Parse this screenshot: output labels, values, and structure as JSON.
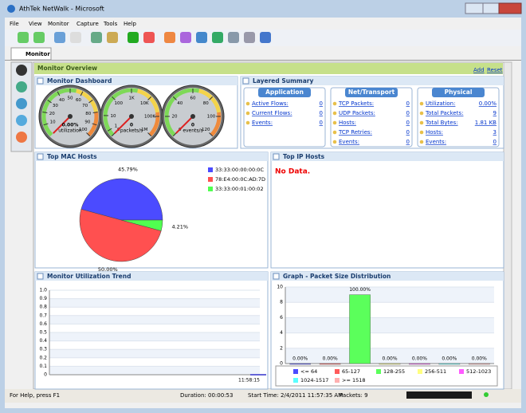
{
  "window": {
    "title": "AthTek NetWalk - Microsoft",
    "menu": [
      "File",
      "View",
      "Monitor",
      "Capture",
      "Tools",
      "Help"
    ],
    "tab": "Monitor"
  },
  "overview": {
    "title": "Monitor Overview",
    "links": [
      "Add",
      "Reset"
    ]
  },
  "dashboard": {
    "title": "Monitor Dashboard",
    "gauges": [
      {
        "label": "utilization",
        "value": 0,
        "value_label": "0.00%",
        "range": [
          0,
          100
        ],
        "ticks": [
          10,
          20,
          30,
          40,
          50,
          60,
          70,
          80,
          90,
          100
        ]
      },
      {
        "label": "packets/s",
        "value": 0,
        "scale": "log",
        "range": [
          0,
          1000000
        ],
        "ticks": [
          0,
          1,
          10,
          100,
          {
            "value": 1000,
            "label": "1K"
          },
          {
            "value": 10000,
            "label": "10K"
          },
          {
            "value": 100000,
            "label": "100K"
          },
          {
            "value": 1000000,
            "label": "1M"
          }
        ]
      },
      {
        "label": "events/s",
        "value": 0,
        "range": [
          0,
          120
        ],
        "ticks": [
          0,
          20,
          40,
          60,
          80,
          100,
          120
        ]
      }
    ]
  },
  "summary": {
    "title": "Layered Summary",
    "groups": [
      {
        "title": "Application",
        "rows": [
          {
            "label": "Active Flows:",
            "value": 0
          },
          {
            "label": "Current Flows:",
            "value": 0
          },
          {
            "label": "Events:",
            "value": 0
          }
        ]
      },
      {
        "title": "Net/Transport",
        "rows": [
          {
            "label": "TCP Packets:",
            "value": 0
          },
          {
            "label": "UDP Packets:",
            "value": 0
          },
          {
            "label": "Hosts:",
            "value": 0
          },
          {
            "label": "TCP Retries:",
            "value": 0
          },
          {
            "label": "Events:",
            "value": 0
          }
        ]
      },
      {
        "title": "Physical",
        "rows": [
          {
            "label": "Utilization:",
            "value": 0,
            "value_label": "0.00%"
          },
          {
            "label": "Total Packets:",
            "value": 9
          },
          {
            "label": "Total Bytes:",
            "value": 1.81,
            "value_label": "1.81 KB"
          },
          {
            "label": "Hosts:",
            "value": 3
          },
          {
            "label": "Events:",
            "value": 0
          }
        ]
      }
    ]
  },
  "ip_hosts": {
    "title": "Top IP Hosts",
    "message": "No Data."
  },
  "chart_data": [
    {
      "type": "pie",
      "title": "Top MAC Hosts",
      "categories": [
        "33:33:00:00:00:0C",
        "78:E4:00:0C:AD:7D",
        "33:33:00:01:00:02"
      ],
      "values": [
        45.79,
        50,
        4.21
      ],
      "value_labels": [
        "45.79%",
        "50.00%",
        "4.21%"
      ],
      "colors": [
        "#4b4bff",
        "#ff5050",
        "#50ff50"
      ]
    },
    {
      "type": "line",
      "title": "Monitor Utilization Trend",
      "x": [
        "11:58:15"
      ],
      "values": [
        0
      ],
      "color": "#3333cc",
      "ylim": [
        0,
        1
      ],
      "yticks": [
        0,
        0.1,
        0.2,
        0.3,
        0.4,
        0.5,
        0.6,
        0.7,
        0.8,
        0.9,
        {
          "value": 1,
          "label": "1.0"
        }
      ],
      "grid": true
    },
    {
      "type": "bar",
      "title": "Graph - Packet Size Distribution",
      "categories": [
        "<= 64",
        "65-127",
        "128-255",
        "256-511",
        "512-1023",
        "1024-1517",
        ">= 1518"
      ],
      "values": [
        0,
        0,
        9,
        0,
        0,
        0,
        0
      ],
      "value_labels": [
        "0.00%",
        "0.00%",
        "100.00%",
        "0.00%",
        "0.00%",
        "0.00%",
        "0.00%"
      ],
      "colors": [
        "#4b4bff",
        "#ff5b5b",
        "#5bff5b",
        "#ffff80",
        "#ff5bff",
        "#5bffff",
        "#ffb0b0"
      ],
      "ylim": [
        0,
        10
      ],
      "yticks": [
        0,
        2,
        4,
        6,
        8,
        10
      ],
      "grid": true
    }
  ],
  "status": {
    "help": "For Help, press F1",
    "duration": "Duration: 00:00:53",
    "start": "Start Time: 2/4/2011 11:57:35 AM",
    "packets": "Packets: 9"
  }
}
